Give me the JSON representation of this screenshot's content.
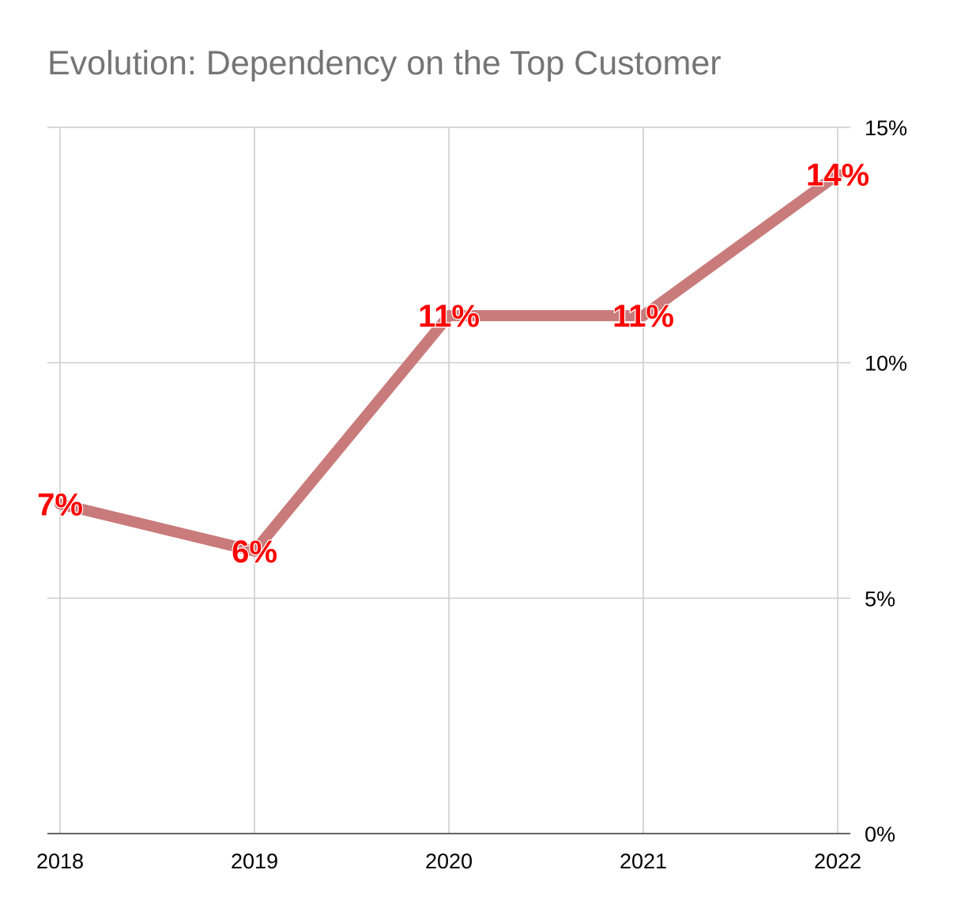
{
  "chart_data": {
    "type": "line",
    "title": "Evolution: Dependency on the Top Customer",
    "categories": [
      "2018",
      "2019",
      "2020",
      "2021",
      "2022"
    ],
    "series": [
      {
        "values": [
          7,
          6,
          11,
          11,
          14
        ],
        "data_labels": [
          "7%",
          "6%",
          "11%",
          "11%",
          "14%"
        ],
        "color": "#c97b7b"
      }
    ],
    "y_axis": {
      "position": "right",
      "ylim": [
        0,
        15
      ],
      "ticks": [
        0,
        5,
        10,
        15
      ],
      "tick_labels": [
        "0%",
        "5%",
        "10%",
        "15%"
      ]
    },
    "xlabel": "",
    "ylabel": "",
    "grid": true,
    "data_label_color": "#ff0000"
  }
}
